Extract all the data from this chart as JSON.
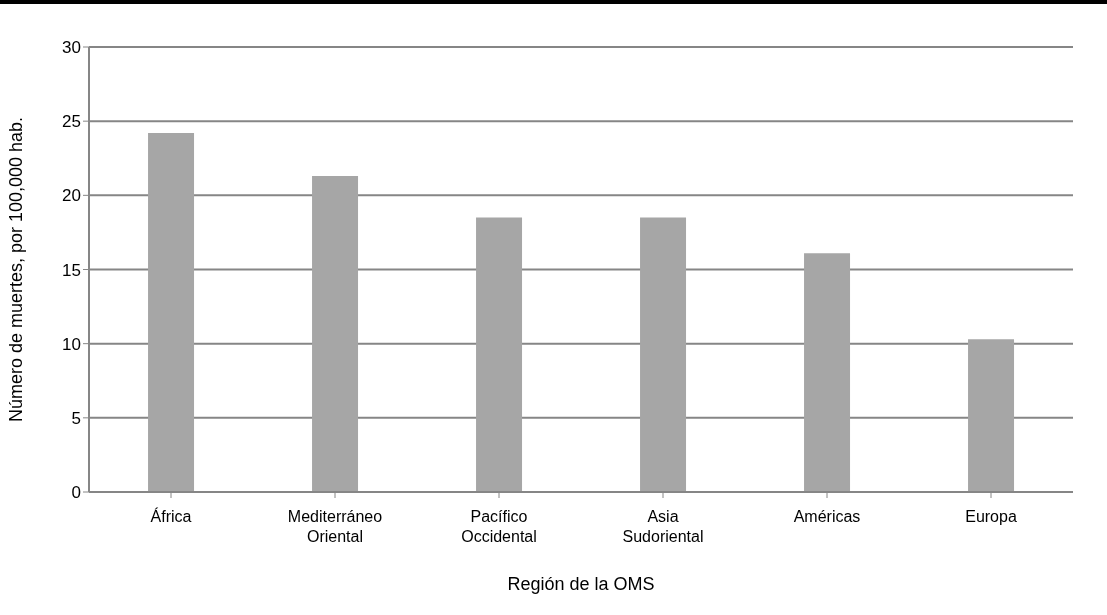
{
  "chart_data": {
    "type": "bar",
    "xlabel": "Región de la OMS",
    "ylabel": "Número de muertes, por 100,000 hab.",
    "categories": [
      "África",
      "Mediterráneo Oriental",
      "Pacífico Occidental",
      "Asia Sudoriental",
      "Américas",
      "Europa"
    ],
    "values": [
      24.2,
      21.3,
      18.5,
      18.5,
      16.1,
      10.3
    ],
    "color": "#a6a6a6",
    "ylim": [
      0,
      30
    ],
    "yticks": [
      0,
      5,
      10,
      15,
      20,
      25,
      30
    ],
    "grid": "y",
    "legend": false
  }
}
